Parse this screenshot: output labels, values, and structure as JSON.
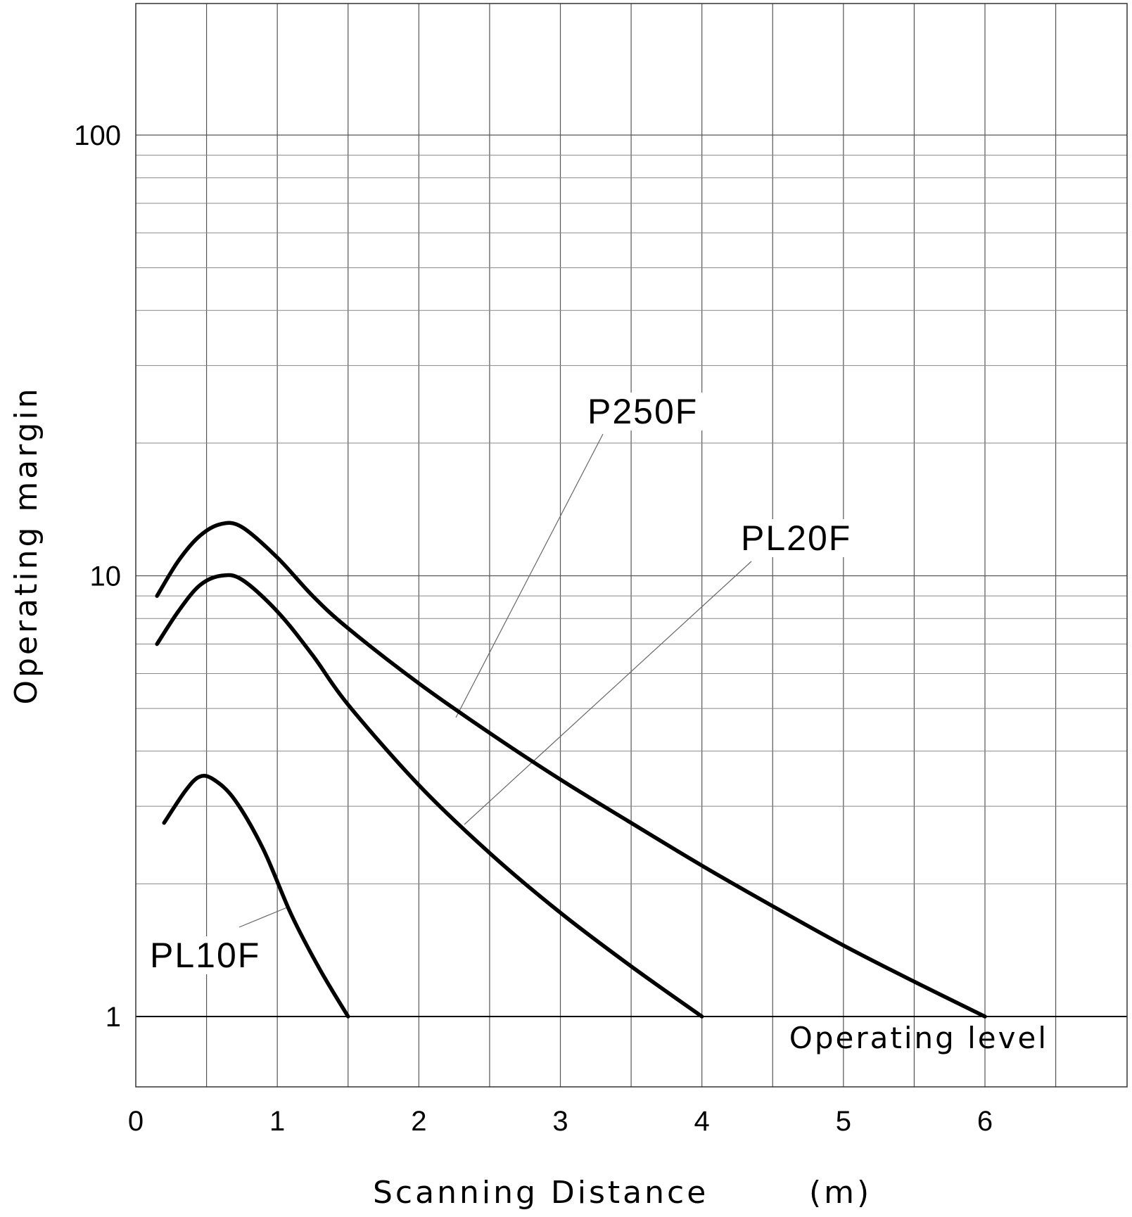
{
  "chart_data": {
    "type": "line",
    "title": "",
    "xlabel": "Scanning  Distance",
    "xunit": "(m)",
    "ylabel": "Operating  margin",
    "x_scale": "linear",
    "y_scale": "log",
    "xlim": [
      0,
      7
    ],
    "ylim": [
      0.55,
      200
    ],
    "x_ticks": [
      0,
      1,
      2,
      3,
      4,
      5,
      6
    ],
    "x_tick_labels": [
      "0",
      "1",
      "2",
      "3",
      "4",
      "5",
      "6"
    ],
    "y_ticks": [
      1,
      10,
      100
    ],
    "y_tick_labels": [
      "1",
      "10",
      "100"
    ],
    "grid": true,
    "reference_line": {
      "y": 1,
      "label": "Operating  level"
    },
    "series": [
      {
        "name": "P250F",
        "points": [
          [
            0.15,
            9.0
          ],
          [
            0.3,
            10.8
          ],
          [
            0.45,
            12.3
          ],
          [
            0.6,
            13.1
          ],
          [
            0.75,
            12.9
          ],
          [
            1.0,
            11.0
          ],
          [
            1.25,
            9.0
          ],
          [
            1.5,
            7.6
          ],
          [
            2.0,
            5.7
          ],
          [
            2.5,
            4.4
          ],
          [
            3.0,
            3.45
          ],
          [
            3.5,
            2.75
          ],
          [
            4.0,
            2.2
          ],
          [
            4.5,
            1.78
          ],
          [
            5.0,
            1.45
          ],
          [
            5.5,
            1.2
          ],
          [
            6.0,
            1.0
          ]
        ]
      },
      {
        "name": "PL20F",
        "points": [
          [
            0.15,
            7.0
          ],
          [
            0.3,
            8.3
          ],
          [
            0.45,
            9.5
          ],
          [
            0.6,
            10.0
          ],
          [
            0.75,
            9.8
          ],
          [
            1.0,
            8.3
          ],
          [
            1.25,
            6.6
          ],
          [
            1.5,
            5.1
          ],
          [
            2.0,
            3.35
          ],
          [
            2.5,
            2.35
          ],
          [
            3.0,
            1.72
          ],
          [
            3.5,
            1.3
          ],
          [
            4.0,
            1.0
          ]
        ]
      },
      {
        "name": "PL10F",
        "points": [
          [
            0.2,
            2.75
          ],
          [
            0.35,
            3.25
          ],
          [
            0.45,
            3.5
          ],
          [
            0.55,
            3.45
          ],
          [
            0.7,
            3.1
          ],
          [
            0.9,
            2.4
          ],
          [
            1.1,
            1.7
          ],
          [
            1.3,
            1.28
          ],
          [
            1.5,
            1.0
          ]
        ]
      }
    ]
  }
}
